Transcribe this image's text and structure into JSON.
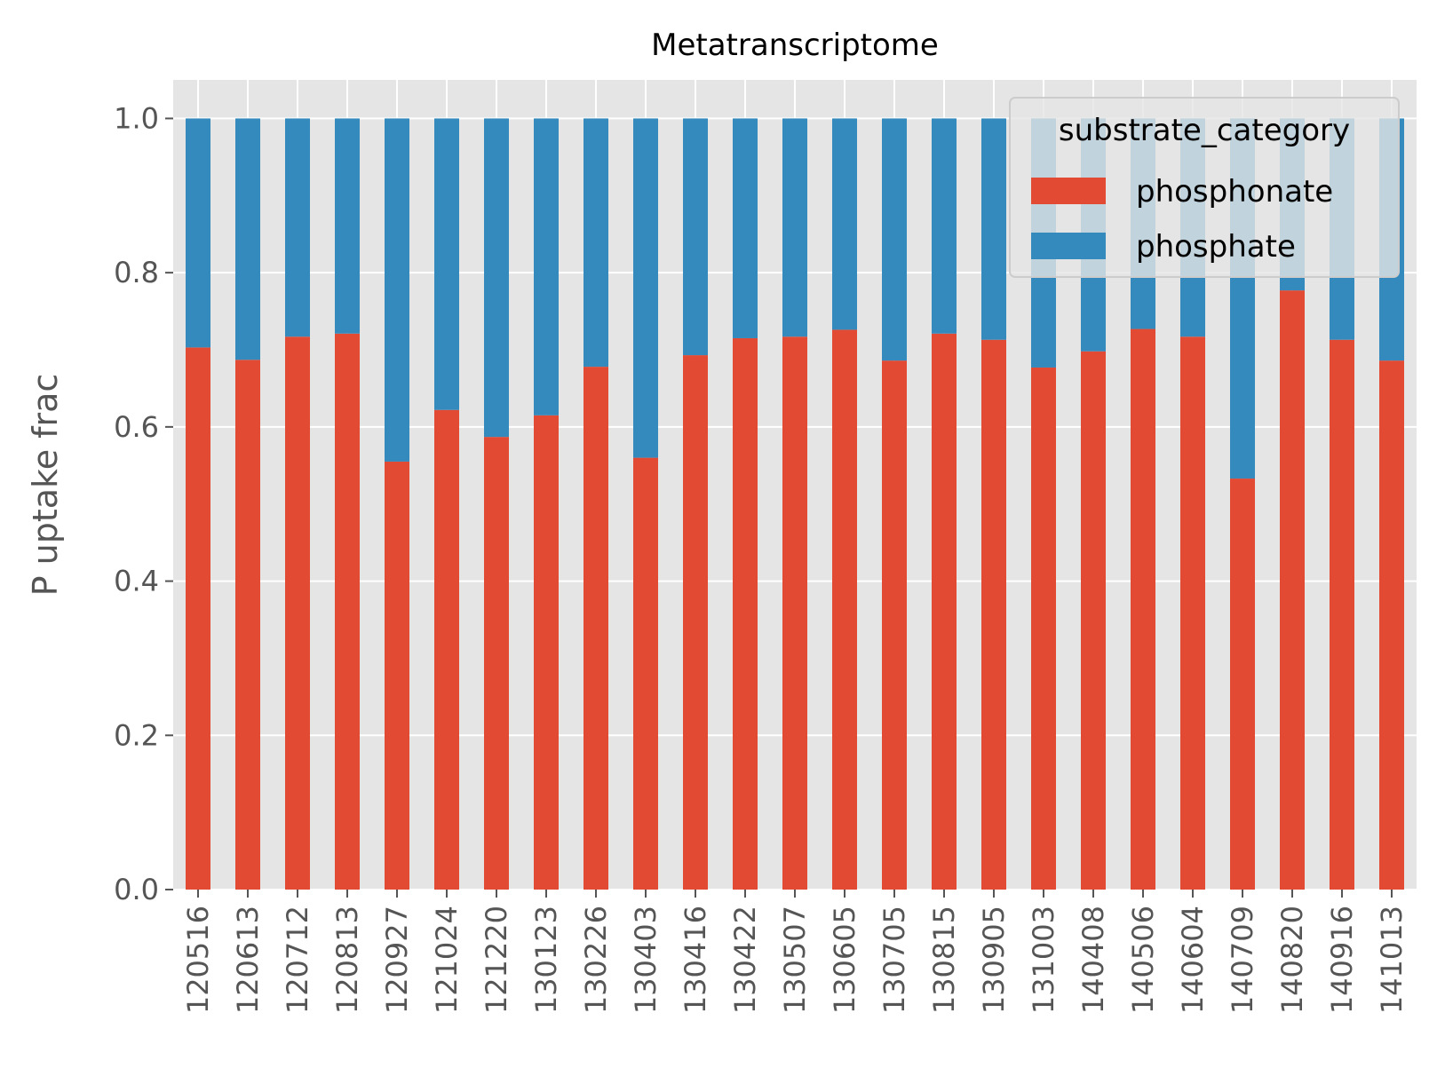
{
  "chart_data": {
    "type": "bar",
    "stacked": true,
    "title": "Metatranscriptome",
    "xlabel": "",
    "ylabel": "P uptake frac",
    "ylim": [
      0,
      1.05
    ],
    "yticks": [
      "0.0",
      "0.2",
      "0.4",
      "0.6",
      "0.8",
      "1.0"
    ],
    "grid": true,
    "legend_placement": "top-right",
    "legend_title": "substrate_category",
    "categories": [
      "120516",
      "120613",
      "120712",
      "120813",
      "120927",
      "121024",
      "121220",
      "130123",
      "130226",
      "130403",
      "130416",
      "130422",
      "130507",
      "130605",
      "130705",
      "130815",
      "130905",
      "131003",
      "140408",
      "140506",
      "140604",
      "140709",
      "140820",
      "140916",
      "141013"
    ],
    "series": [
      {
        "name": "phosphonate",
        "color": "#E24A33",
        "values": [
          0.703,
          0.687,
          0.717,
          0.721,
          0.555,
          0.622,
          0.587,
          0.615,
          0.678,
          0.56,
          0.693,
          0.715,
          0.717,
          0.726,
          0.686,
          0.721,
          0.713,
          0.677,
          0.698,
          0.727,
          0.717,
          0.533,
          0.777,
          0.713,
          0.686
        ]
      },
      {
        "name": "phosphate",
        "color": "#348ABD",
        "values": [
          0.297,
          0.313,
          0.283,
          0.279,
          0.445,
          0.378,
          0.413,
          0.385,
          0.322,
          0.44,
          0.307,
          0.285,
          0.283,
          0.274,
          0.314,
          0.279,
          0.287,
          0.323,
          0.302,
          0.273,
          0.283,
          0.467,
          0.223,
          0.287,
          0.314
        ]
      }
    ]
  }
}
